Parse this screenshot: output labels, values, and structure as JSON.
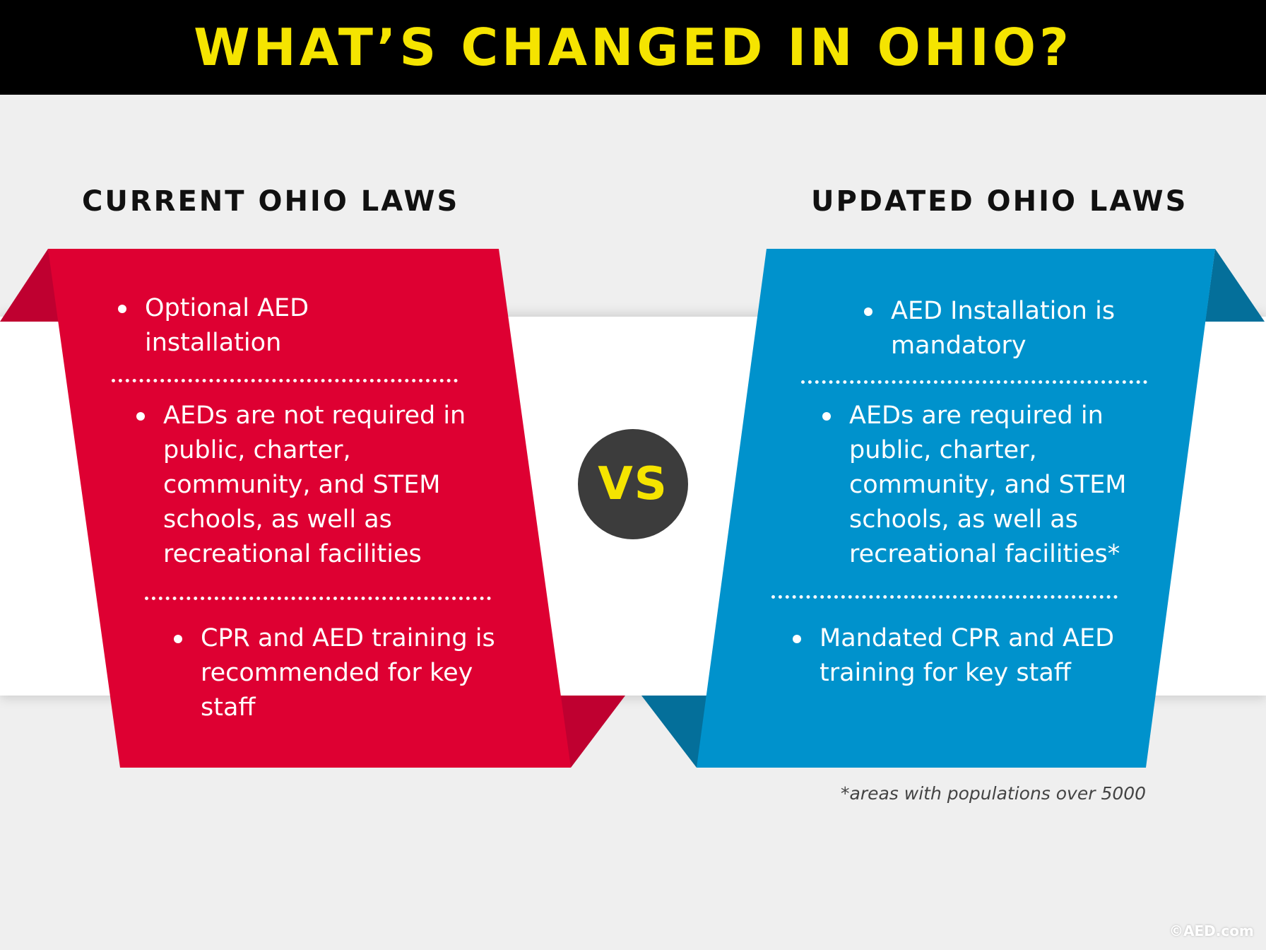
{
  "title": "WHAT’S CHANGED IN OHIO?",
  "colors": {
    "header_bg": "#000000",
    "title": "#f5e400",
    "current_panel": "#de0032",
    "current_fold": "#bf0030",
    "updated_panel": "#0092cc",
    "updated_fold": "#046f9a",
    "vs_circle": "#3c3c3c"
  },
  "current": {
    "heading": "CURRENT OHIO LAWS",
    "items": [
      "Optional AED installation",
      "AEDs are not required in public, charter, community, and STEM schools, as well as recreational facilities",
      "CPR and AED training is recommended for key staff"
    ]
  },
  "updated": {
    "heading": "UPDATED OHIO LAWS",
    "items": [
      "AED Installation is mandatory",
      "AEDs are required in public, charter, community, and STEM schools, as well as recreational facilities*",
      "Mandated CPR and AED training for key staff"
    ]
  },
  "vs_label": "VS",
  "footnote": "*areas with populations over 5000",
  "credit": "©AED.com"
}
